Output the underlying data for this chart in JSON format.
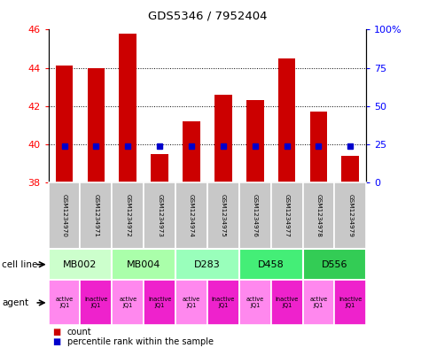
{
  "title": "GDS5346 / 7952404",
  "samples": [
    "GSM1234970",
    "GSM1234971",
    "GSM1234972",
    "GSM1234973",
    "GSM1234974",
    "GSM1234975",
    "GSM1234976",
    "GSM1234977",
    "GSM1234978",
    "GSM1234979"
  ],
  "count_values": [
    44.1,
    44.0,
    45.8,
    39.5,
    41.2,
    42.6,
    42.3,
    44.5,
    41.7,
    39.4
  ],
  "percentile_values": [
    24,
    24,
    24,
    24,
    24,
    24,
    24,
    24,
    24,
    24
  ],
  "ylim_left": [
    38,
    46
  ],
  "ylim_right": [
    0,
    100
  ],
  "yticks_left": [
    38,
    40,
    42,
    44,
    46
  ],
  "yticks_right": [
    0,
    25,
    50,
    75,
    100
  ],
  "cell_lines": [
    {
      "label": "MB002",
      "span": [
        0,
        2
      ],
      "color": "#ccffcc"
    },
    {
      "label": "MB004",
      "span": [
        2,
        4
      ],
      "color": "#aaffaa"
    },
    {
      "label": "D283",
      "span": [
        4,
        6
      ],
      "color": "#99ffbb"
    },
    {
      "label": "D458",
      "span": [
        6,
        8
      ],
      "color": "#44ee77"
    },
    {
      "label": "D556",
      "span": [
        8,
        10
      ],
      "color": "#33cc55"
    }
  ],
  "agents": [
    "active\nJQ1",
    "inactive\nJQ1",
    "active\nJQ1",
    "inactive\nJQ1",
    "active\nJQ1",
    "inactive\nJQ1",
    "active\nJQ1",
    "inactive\nJQ1",
    "active\nJQ1",
    "inactive\nJQ1"
  ],
  "agent_active_color": "#ff88ee",
  "agent_inactive_color": "#ee22cc",
  "bar_color": "#cc0000",
  "percentile_color": "#0000cc",
  "bar_width": 0.55,
  "percentile_marker_size": 5,
  "bg_gray": "#c8c8c8",
  "bg_gray_light": "#dddddd"
}
